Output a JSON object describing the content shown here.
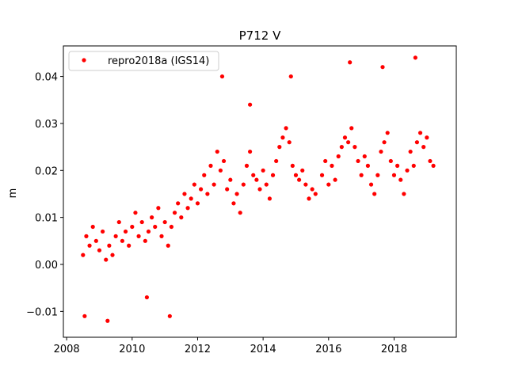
{
  "chart_data": {
    "type": "scatter",
    "title": "P712 V",
    "xlabel": "",
    "ylabel": "m",
    "xlim": [
      2007.9,
      2019.9
    ],
    "ylim": [
      -0.0155,
      0.0465
    ],
    "xticks": [
      2008,
      2010,
      2012,
      2014,
      2016,
      2018
    ],
    "xtick_labels": [
      "2008",
      "2010",
      "2012",
      "2014",
      "2016",
      "2018"
    ],
    "yticks": [
      -0.01,
      0.0,
      0.01,
      0.02,
      0.03,
      0.04
    ],
    "ytick_labels": [
      "−0.01",
      "0.00",
      "0.01",
      "0.02",
      "0.03",
      "0.04"
    ],
    "legend": {
      "position": "top-left",
      "entries": [
        "repro2018a (IGS14)"
      ]
    },
    "grid": false,
    "colors": {
      "series": "#ff0000",
      "axes": "#000000",
      "background": "#ffffff"
    },
    "series": [
      {
        "name": "repro2018a (IGS14)",
        "marker": "o",
        "x": [
          2008.5,
          2008.6,
          2008.7,
          2008.8,
          2008.9,
          2009.0,
          2009.1,
          2009.2,
          2009.3,
          2009.4,
          2009.5,
          2009.6,
          2009.7,
          2009.8,
          2009.9,
          2010.0,
          2010.1,
          2010.2,
          2010.3,
          2010.4,
          2010.5,
          2010.6,
          2010.7,
          2010.8,
          2010.9,
          2011.0,
          2011.1,
          2011.2,
          2011.3,
          2011.4,
          2011.5,
          2011.6,
          2011.7,
          2011.8,
          2011.9,
          2012.0,
          2012.1,
          2012.2,
          2012.3,
          2012.4,
          2012.5,
          2012.6,
          2012.7,
          2012.8,
          2012.9,
          2013.0,
          2013.1,
          2013.2,
          2013.3,
          2013.4,
          2013.5,
          2013.6,
          2013.7,
          2013.8,
          2013.9,
          2014.0,
          2014.1,
          2014.2,
          2014.3,
          2014.4,
          2014.5,
          2014.6,
          2014.7,
          2014.8,
          2014.9,
          2015.0,
          2015.1,
          2015.2,
          2015.3,
          2015.4,
          2015.5,
          2015.6,
          2015.8,
          2015.9,
          2016.0,
          2016.1,
          2016.2,
          2016.3,
          2016.4,
          2016.5,
          2016.6,
          2016.7,
          2016.8,
          2016.9,
          2017.0,
          2017.1,
          2017.2,
          2017.3,
          2017.4,
          2017.5,
          2017.6,
          2017.7,
          2017.8,
          2017.9,
          2018.0,
          2018.1,
          2018.2,
          2018.3,
          2018.4,
          2018.5,
          2018.6,
          2018.7,
          2018.8,
          2018.9,
          2019.0,
          2019.1,
          2019.2,
          2008.55,
          2009.25,
          2010.45,
          2011.15,
          2012.75,
          2013.6,
          2014.85,
          2016.65,
          2017.65,
          2018.65
        ],
        "y": [
          0.002,
          0.006,
          0.004,
          0.008,
          0.005,
          0.003,
          0.007,
          0.001,
          0.004,
          0.002,
          0.006,
          0.009,
          0.005,
          0.007,
          0.004,
          0.008,
          0.011,
          0.006,
          0.009,
          0.005,
          0.007,
          0.01,
          0.008,
          0.012,
          0.006,
          0.009,
          0.004,
          0.008,
          0.011,
          0.013,
          0.01,
          0.015,
          0.012,
          0.014,
          0.017,
          0.013,
          0.016,
          0.019,
          0.015,
          0.021,
          0.017,
          0.024,
          0.02,
          0.022,
          0.016,
          0.018,
          0.013,
          0.015,
          0.011,
          0.017,
          0.021,
          0.024,
          0.019,
          0.018,
          0.016,
          0.02,
          0.017,
          0.014,
          0.019,
          0.022,
          0.025,
          0.027,
          0.029,
          0.026,
          0.021,
          0.019,
          0.018,
          0.02,
          0.017,
          0.014,
          0.016,
          0.015,
          0.019,
          0.022,
          0.017,
          0.021,
          0.018,
          0.023,
          0.025,
          0.027,
          0.026,
          0.029,
          0.025,
          0.022,
          0.019,
          0.023,
          0.021,
          0.017,
          0.015,
          0.019,
          0.024,
          0.026,
          0.028,
          0.022,
          0.019,
          0.021,
          0.018,
          0.015,
          0.02,
          0.024,
          0.021,
          0.026,
          0.028,
          0.025,
          0.027,
          0.022,
          0.021,
          -0.011,
          -0.012,
          -0.007,
          -0.011,
          0.04,
          0.034,
          0.04,
          0.043,
          0.042,
          0.044
        ]
      }
    ]
  }
}
